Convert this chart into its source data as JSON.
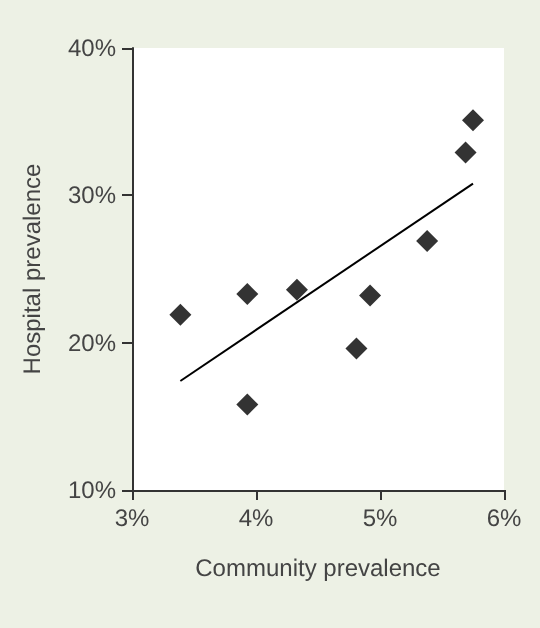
{
  "chart_data": {
    "type": "scatter",
    "xlabel": "Community prevalence",
    "ylabel": "Hospital prevalence",
    "marker": "diamond",
    "grid": false,
    "xlim": [
      3,
      6
    ],
    "xticks": [
      {
        "value": 3,
        "label": "3%"
      },
      {
        "value": 4,
        "label": "4%"
      },
      {
        "value": 5,
        "label": "5%"
      },
      {
        "value": 6,
        "label": "6%"
      }
    ],
    "ylim": [
      10,
      40
    ],
    "yticks": [
      {
        "value": 10,
        "label": "10%"
      },
      {
        "value": 20,
        "label": "20%"
      },
      {
        "value": 30,
        "label": "30%"
      },
      {
        "value": 40,
        "label": "40%"
      }
    ],
    "series": [
      {
        "color": "#000000",
        "x": [
          3.39,
          3.93,
          3.93,
          4.33,
          4.81,
          4.92,
          5.38,
          5.69,
          5.75
        ],
        "values": [
          21.9,
          23.3,
          15.8,
          23.6,
          19.6,
          23.2,
          26.9,
          32.9,
          35.1
        ]
      },
      {
        "type": "line",
        "color": "#000000",
        "marker": "none",
        "line_style": "solid",
        "x": [
          3.39,
          5.75
        ],
        "values": [
          17.4,
          30.8
        ]
      }
    ]
  }
}
